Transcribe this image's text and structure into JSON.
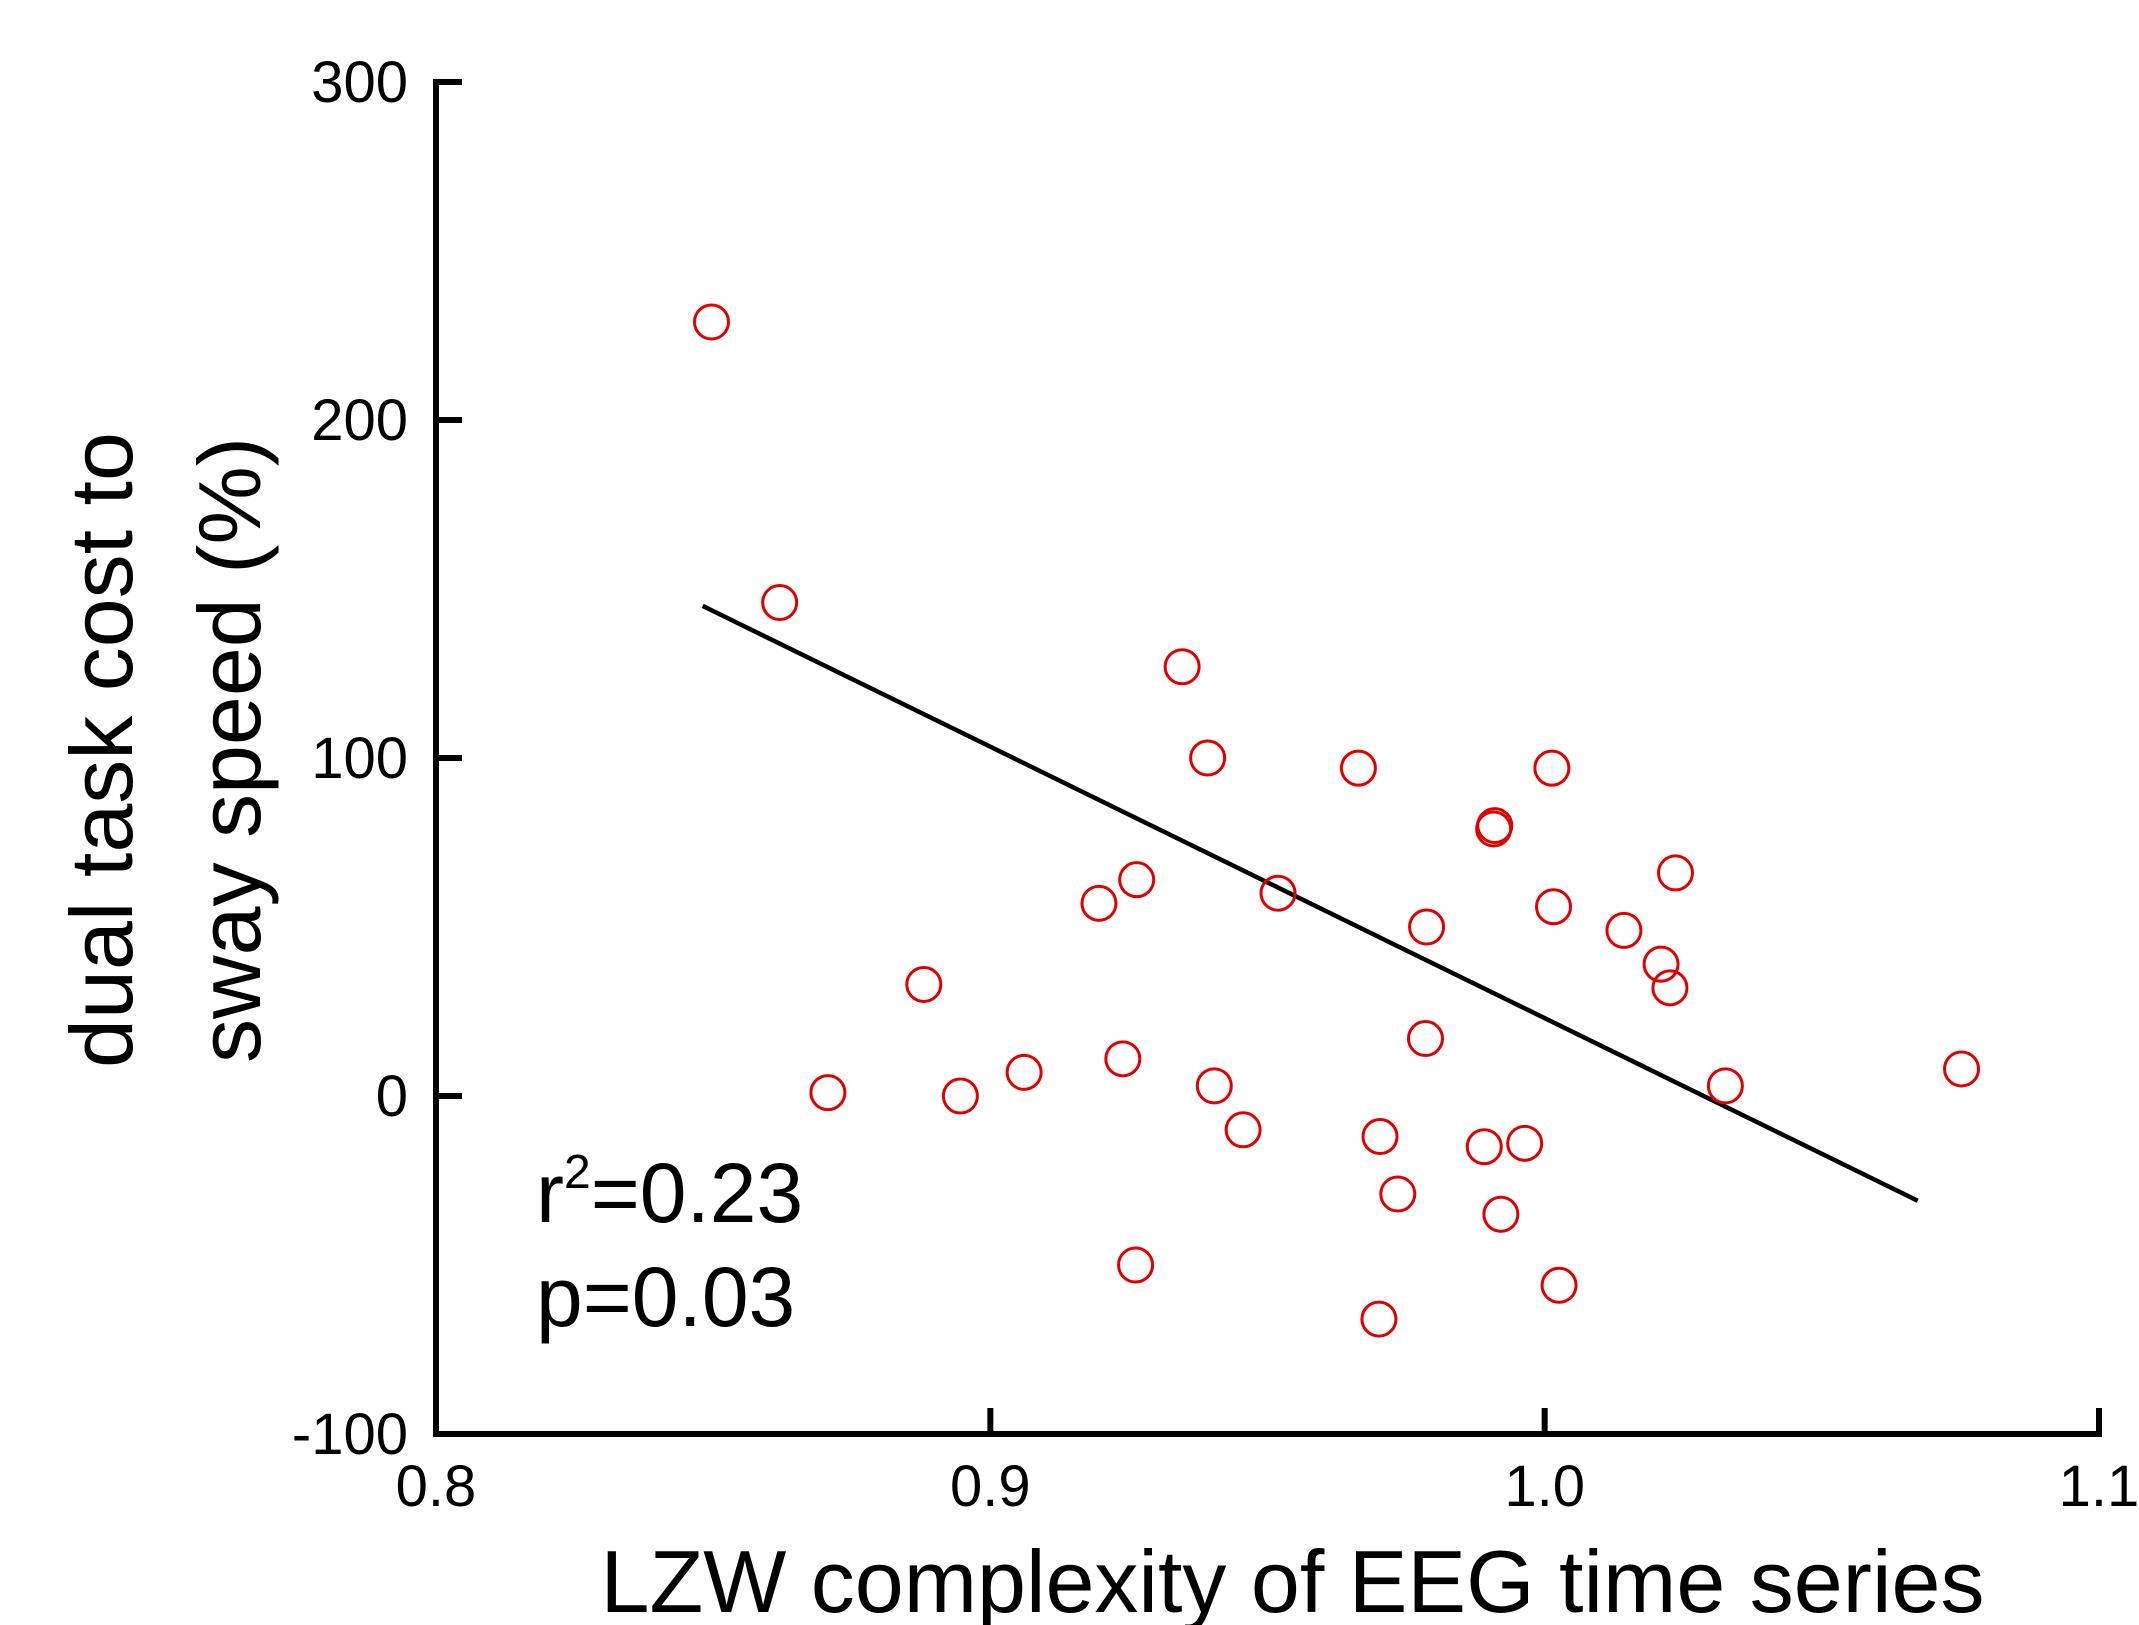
{
  "chart_data": {
    "type": "scatter",
    "xlabel": "LZW complexity of EEG time series",
    "ylabel_lines": [
      "dual task cost to",
      "sway speed (%)"
    ],
    "xlim": [
      0.8,
      1.1
    ],
    "ylim": [
      -100,
      300
    ],
    "xticks": [
      0.8,
      0.9,
      1.0,
      1.1
    ],
    "xtick_labels": [
      "0.8",
      "0.9",
      "1.0",
      "1.1"
    ],
    "yticks": [
      -100,
      0,
      100,
      200,
      300
    ],
    "ytick_labels": [
      "-100",
      "0",
      "100",
      "200",
      "300"
    ],
    "grid": false,
    "marker_color": "#e00000",
    "line_color": "#000000",
    "points": [
      {
        "x": 0.8497,
        "y": 229
      },
      {
        "x": 0.862,
        "y": 146
      },
      {
        "x": 0.8707,
        "y": 1
      },
      {
        "x": 0.888,
        "y": 33
      },
      {
        "x": 0.8946,
        "y": 0
      },
      {
        "x": 0.9061,
        "y": 7
      },
      {
        "x": 0.9196,
        "y": 57
      },
      {
        "x": 0.9239,
        "y": 11
      },
      {
        "x": 0.9264,
        "y": 64
      },
      {
        "x": 0.9262,
        "y": -50
      },
      {
        "x": 0.9346,
        "y": 127
      },
      {
        "x": 0.9392,
        "y": 100
      },
      {
        "x": 0.9404,
        "y": 3
      },
      {
        "x": 0.9456,
        "y": -10
      },
      {
        "x": 0.9519,
        "y": 60
      },
      {
        "x": 0.9664,
        "y": 97
      },
      {
        "x": 0.9703,
        "y": -12
      },
      {
        "x": 0.9701,
        "y": -66
      },
      {
        "x": 0.9735,
        "y": -29
      },
      {
        "x": 0.9785,
        "y": 17
      },
      {
        "x": 0.9787,
        "y": 50
      },
      {
        "x": 0.9891,
        "y": -15
      },
      {
        "x": 0.9908,
        "y": 79
      },
      {
        "x": 0.991,
        "y": 80
      },
      {
        "x": 0.9921,
        "y": -35
      },
      {
        "x": 0.9964,
        "y": -14
      },
      {
        "x": 1.0013,
        "y": 97
      },
      {
        "x": 1.0016,
        "y": 56
      },
      {
        "x": 1.0026,
        "y": -56
      },
      {
        "x": 1.0143,
        "y": 49
      },
      {
        "x": 1.021,
        "y": 39
      },
      {
        "x": 1.0226,
        "y": 32
      },
      {
        "x": 1.0236,
        "y": 66
      },
      {
        "x": 1.0326,
        "y": 3
      },
      {
        "x": 1.0752,
        "y": 8
      }
    ],
    "fit_line": {
      "x": [
        0.8481,
        1.0673
      ],
      "y": [
        145,
        -31
      ]
    },
    "annotations": {
      "r_symbol": "r",
      "r_superscript": "2",
      "r_value": "=0.23",
      "p_text": "p=0.03"
    }
  }
}
